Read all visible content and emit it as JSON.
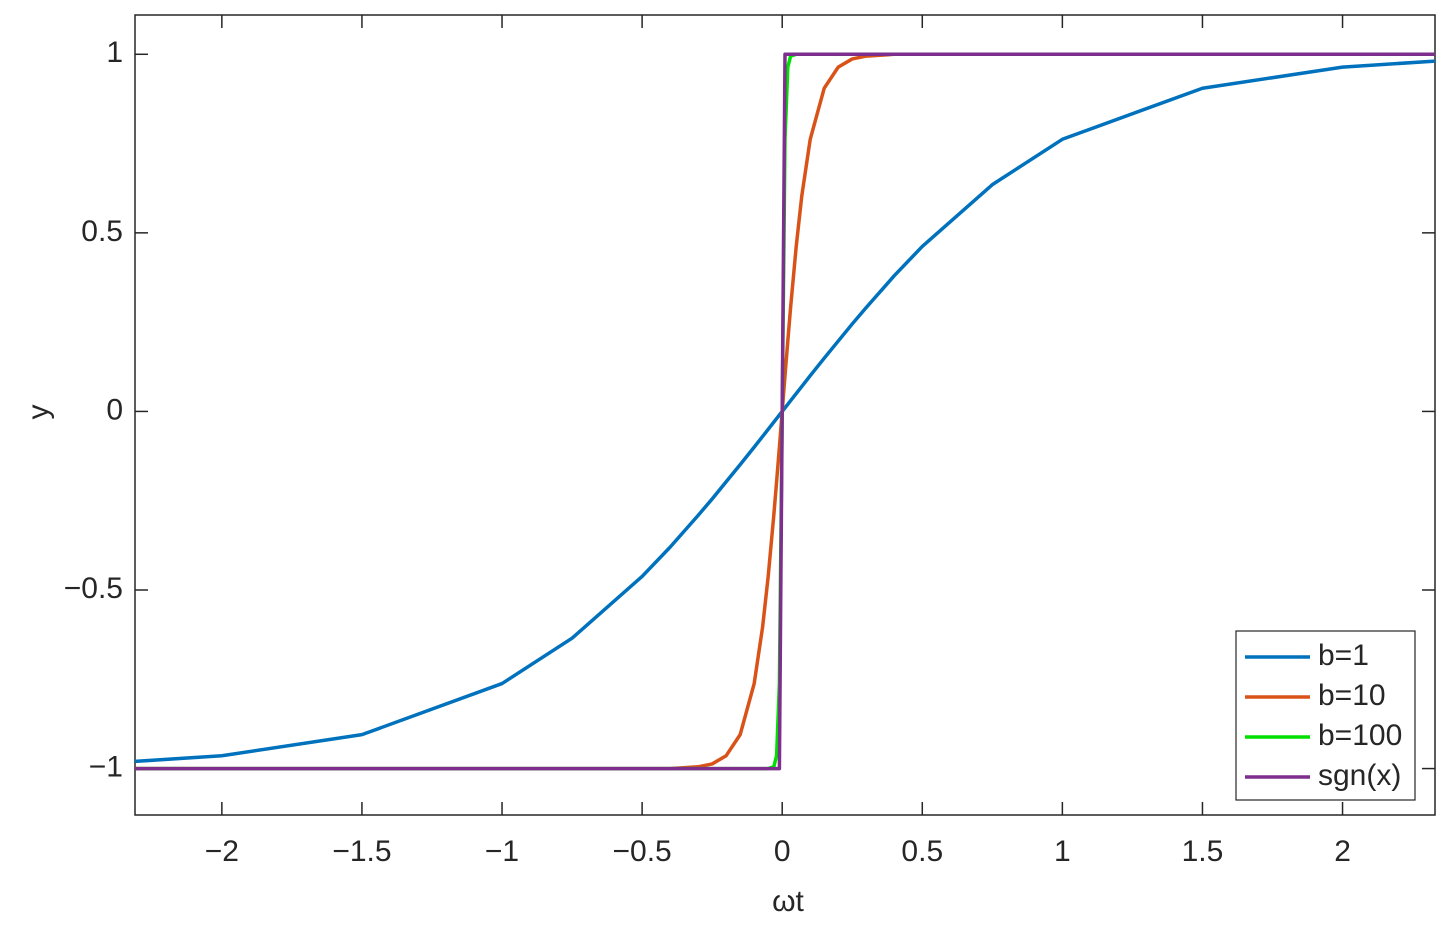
{
  "chart_data": {
    "type": "line",
    "x_label": "ωt",
    "y_label": "y",
    "x": [
      -2.31,
      -2,
      -1.5,
      -1,
      -0.75,
      -0.5,
      -0.4,
      -0.3,
      -0.25,
      -0.2,
      -0.15,
      -0.1,
      -0.07,
      -0.05,
      -0.03,
      -0.02,
      -0.01,
      0,
      0.01,
      0.02,
      0.03,
      0.05,
      0.07,
      0.1,
      0.15,
      0.2,
      0.25,
      0.3,
      0.4,
      0.5,
      0.75,
      1,
      1.5,
      2,
      2.33
    ],
    "series": [
      {
        "name": "b=1",
        "color": "#0072bd",
        "values": [
          -0.98,
          -0.964,
          -0.905,
          -0.762,
          -0.635,
          -0.462,
          -0.38,
          -0.291,
          -0.245,
          -0.197,
          -0.149,
          -0.1,
          -0.07,
          -0.05,
          -0.03,
          -0.02,
          -0.01,
          0,
          0.01,
          0.02,
          0.03,
          0.05,
          0.07,
          0.1,
          0.149,
          0.197,
          0.245,
          0.291,
          0.38,
          0.462,
          0.635,
          0.762,
          0.905,
          0.964,
          0.981
        ]
      },
      {
        "name": "b=10",
        "color": "#d95319",
        "values": [
          -1,
          -1,
          -1,
          -1,
          -1,
          -1,
          -1,
          -0.995,
          -0.987,
          -0.964,
          -0.905,
          -0.762,
          -0.604,
          -0.462,
          -0.291,
          -0.197,
          -0.1,
          0,
          0.1,
          0.197,
          0.291,
          0.462,
          0.604,
          0.762,
          0.905,
          0.964,
          0.987,
          0.995,
          1,
          1,
          1,
          1,
          1,
          1,
          1
        ]
      },
      {
        "name": "b=100",
        "color": "#00e000",
        "values": [
          -1,
          -1,
          -1,
          -1,
          -1,
          -1,
          -1,
          -1,
          -1,
          -1,
          -1,
          -1,
          -1,
          -1,
          -0.995,
          -0.964,
          -0.762,
          0,
          0.762,
          0.964,
          0.995,
          1,
          1,
          1,
          1,
          1,
          1,
          1,
          1,
          1,
          1,
          1,
          1,
          1,
          1
        ]
      },
      {
        "name": "sgn(x)",
        "color": "#7e2f8e",
        "values": [
          -1,
          -1,
          -1,
          -1,
          -1,
          -1,
          -1,
          -1,
          -1,
          -1,
          -1,
          -1,
          -1,
          -1,
          -1,
          -1,
          -1,
          0,
          1,
          1,
          1,
          1,
          1,
          1,
          1,
          1,
          1,
          1,
          1,
          1,
          1,
          1,
          1,
          1,
          1
        ]
      }
    ],
    "xlim": [
      -2.31,
      2.33
    ],
    "ylim": [
      -1.13,
      1.11
    ],
    "xticks": [
      {
        "value": -2,
        "label": "−2"
      },
      {
        "value": -1.5,
        "label": "−1.5"
      },
      {
        "value": -1,
        "label": "−1"
      },
      {
        "value": -0.5,
        "label": "−0.5"
      },
      0,
      0.5,
      1,
      1.5,
      2
    ],
    "yticks": [
      {
        "value": -1,
        "label": "−1"
      },
      {
        "value": -0.5,
        "label": "−0.5"
      },
      0,
      0.5,
      1
    ],
    "legend": "lower right",
    "grid": false
  }
}
